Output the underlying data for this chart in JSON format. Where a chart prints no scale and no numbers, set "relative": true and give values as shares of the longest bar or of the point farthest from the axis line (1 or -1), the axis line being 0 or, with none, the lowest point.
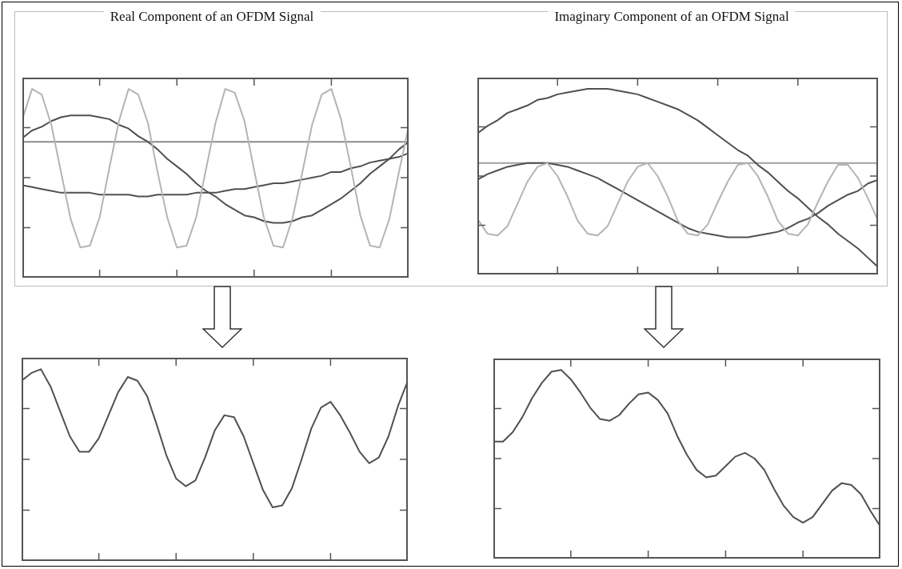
{
  "chart_data": [
    {
      "type": "line",
      "title": "Real Component of an OFDM Signal",
      "relative": true,
      "categories": [
        null,
        null,
        null,
        null,
        null,
        null,
        null,
        null,
        null,
        null,
        null,
        null,
        null,
        null,
        null,
        null,
        null,
        null,
        null,
        null,
        null,
        null,
        null,
        null,
        null,
        null,
        null,
        null,
        null,
        null,
        null,
        null,
        null,
        null,
        null,
        null,
        null,
        null,
        null,
        null,
        null
      ],
      "series": [
        {
          "color": "#b4b4b4",
          "values": [
            0.84,
            1.0,
            0.97,
            0.81,
            0.56,
            0.31,
            0.16,
            0.17,
            0.32,
            0.58,
            0.83,
            1.0,
            0.97,
            0.82,
            0.56,
            0.32,
            0.16,
            0.17,
            0.32,
            0.57,
            0.82,
            1.0,
            0.98,
            0.83,
            0.57,
            0.32,
            0.17,
            0.16,
            0.32,
            0.56,
            0.81,
            0.97,
            1.0,
            0.84,
            0.59,
            0.33,
            0.17,
            0.16,
            0.31,
            0.56,
            0.8
          ]
        },
        {
          "color": "#505050",
          "values": [
            0.74,
            0.78,
            0.8,
            0.83,
            0.85,
            0.86,
            0.86,
            0.86,
            0.85,
            0.84,
            0.81,
            0.79,
            0.75,
            0.72,
            0.68,
            0.63,
            0.59,
            0.55,
            0.5,
            0.46,
            0.43,
            0.39,
            0.36,
            0.33,
            0.32,
            0.3,
            0.29,
            0.29,
            0.3,
            0.32,
            0.33,
            0.36,
            0.39,
            0.42,
            0.46,
            0.5,
            0.55,
            0.59,
            0.63,
            0.68,
            0.72
          ]
        },
        {
          "color": "#505050",
          "values": [
            0.49,
            0.48,
            0.47,
            0.46,
            0.45,
            0.45,
            0.45,
            0.45,
            0.44,
            0.44,
            0.44,
            0.44,
            0.43,
            0.43,
            0.44,
            0.44,
            0.44,
            0.44,
            0.45,
            0.45,
            0.45,
            0.46,
            0.47,
            0.47,
            0.48,
            0.49,
            0.5,
            0.5,
            0.51,
            0.52,
            0.53,
            0.54,
            0.56,
            0.56,
            0.58,
            0.59,
            0.61,
            0.62,
            0.63,
            0.64,
            0.66
          ]
        },
        {
          "color": "#8a8a8a",
          "values": [
            0.72,
            0.72,
            0.72,
            0.72,
            0.72,
            0.72,
            0.72,
            0.72,
            0.72,
            0.72,
            0.72,
            0.72,
            0.72,
            0.72,
            0.72,
            0.72,
            0.72,
            0.72,
            0.72,
            0.72,
            0.72,
            0.72,
            0.72,
            0.72,
            0.72,
            0.72,
            0.72,
            0.72,
            0.72,
            0.72,
            0.72,
            0.72,
            0.72,
            0.72,
            0.72,
            0.72,
            0.72,
            0.72,
            0.72,
            0.72,
            0.72
          ]
        }
      ]
    },
    {
      "type": "line",
      "title": "Imaginary Component of an OFDM Signal",
      "relative": true,
      "categories": [
        null,
        null,
        null,
        null,
        null,
        null,
        null,
        null,
        null,
        null,
        null,
        null,
        null,
        null,
        null,
        null,
        null,
        null,
        null,
        null,
        null,
        null,
        null,
        null,
        null,
        null,
        null,
        null,
        null,
        null,
        null,
        null,
        null,
        null,
        null,
        null,
        null,
        null,
        null,
        null,
        null
      ],
      "series": [
        {
          "color": "#b4b4b4",
          "values": [
            0.3,
            0.22,
            0.21,
            0.26,
            0.38,
            0.5,
            0.58,
            0.6,
            0.53,
            0.42,
            0.29,
            0.22,
            0.21,
            0.26,
            0.38,
            0.5,
            0.58,
            0.6,
            0.53,
            0.42,
            0.29,
            0.22,
            0.21,
            0.27,
            0.39,
            0.5,
            0.59,
            0.6,
            0.53,
            0.42,
            0.29,
            0.22,
            0.21,
            0.27,
            0.39,
            0.5,
            0.59,
            0.59,
            0.52,
            0.41,
            0.29
          ]
        },
        {
          "color": "#505050",
          "values": [
            0.76,
            0.8,
            0.83,
            0.87,
            0.89,
            0.91,
            0.94,
            0.95,
            0.97,
            0.98,
            0.99,
            1.0,
            1.0,
            1.0,
            0.99,
            0.98,
            0.97,
            0.95,
            0.93,
            0.91,
            0.89,
            0.86,
            0.83,
            0.79,
            0.75,
            0.71,
            0.67,
            0.64,
            0.59,
            0.55,
            0.5,
            0.45,
            0.41,
            0.36,
            0.31,
            0.27,
            0.22,
            0.18,
            0.14,
            0.09,
            0.04
          ]
        },
        {
          "color": "#505050",
          "values": [
            0.51,
            0.54,
            0.56,
            0.58,
            0.59,
            0.6,
            0.6,
            0.6,
            0.59,
            0.58,
            0.56,
            0.54,
            0.52,
            0.49,
            0.46,
            0.43,
            0.4,
            0.37,
            0.34,
            0.31,
            0.28,
            0.25,
            0.23,
            0.22,
            0.21,
            0.2,
            0.2,
            0.2,
            0.21,
            0.22,
            0.23,
            0.25,
            0.28,
            0.3,
            0.33,
            0.37,
            0.4,
            0.43,
            0.45,
            0.49,
            0.51
          ]
        },
        {
          "color": "#a0a0a0",
          "values": [
            0.6,
            0.6,
            0.6,
            0.6,
            0.6,
            0.6,
            0.6,
            0.6,
            0.6,
            0.6,
            0.6,
            0.6,
            0.6,
            0.6,
            0.6,
            0.6,
            0.6,
            0.6,
            0.6,
            0.6,
            0.6,
            0.6,
            0.6,
            0.6,
            0.6,
            0.6,
            0.6,
            0.6,
            0.6,
            0.6,
            0.6,
            0.6,
            0.6,
            0.6,
            0.6,
            0.6,
            0.6,
            0.6,
            0.6,
            0.6,
            0.6
          ]
        }
      ]
    },
    {
      "type": "line",
      "relative": true,
      "categories": [
        null,
        null,
        null,
        null,
        null,
        null,
        null,
        null,
        null,
        null,
        null,
        null,
        null,
        null,
        null,
        null,
        null,
        null,
        null,
        null,
        null,
        null,
        null,
        null,
        null,
        null,
        null,
        null,
        null,
        null,
        null,
        null,
        null,
        null,
        null,
        null,
        null,
        null,
        null,
        null,
        null
      ],
      "series": [
        {
          "color": "#505050",
          "values": [
            0.94,
            0.98,
            1.0,
            0.91,
            0.78,
            0.65,
            0.57,
            0.57,
            0.64,
            0.76,
            0.88,
            0.96,
            0.94,
            0.86,
            0.71,
            0.55,
            0.43,
            0.39,
            0.42,
            0.54,
            0.68,
            0.76,
            0.75,
            0.65,
            0.51,
            0.37,
            0.28,
            0.29,
            0.38,
            0.53,
            0.69,
            0.8,
            0.83,
            0.76,
            0.67,
            0.57,
            0.51,
            0.54,
            0.65,
            0.81,
            0.94
          ]
        }
      ]
    },
    {
      "type": "line",
      "relative": true,
      "categories": [
        null,
        null,
        null,
        null,
        null,
        null,
        null,
        null,
        null,
        null,
        null,
        null,
        null,
        null,
        null,
        null,
        null,
        null,
        null,
        null,
        null,
        null,
        null,
        null,
        null,
        null,
        null,
        null,
        null,
        null,
        null,
        null,
        null,
        null,
        null,
        null,
        null,
        null,
        null,
        null,
        null
      ],
      "series": [
        {
          "color": "#505050",
          "values": [
            0.62,
            0.62,
            0.67,
            0.75,
            0.85,
            0.93,
            0.99,
            1.0,
            0.95,
            0.88,
            0.8,
            0.74,
            0.73,
            0.76,
            0.82,
            0.87,
            0.88,
            0.84,
            0.77,
            0.65,
            0.55,
            0.47,
            0.43,
            0.44,
            0.49,
            0.54,
            0.56,
            0.53,
            0.47,
            0.37,
            0.28,
            0.22,
            0.19,
            0.22,
            0.29,
            0.36,
            0.4,
            0.39,
            0.34,
            0.25,
            0.17
          ]
        }
      ]
    }
  ]
}
